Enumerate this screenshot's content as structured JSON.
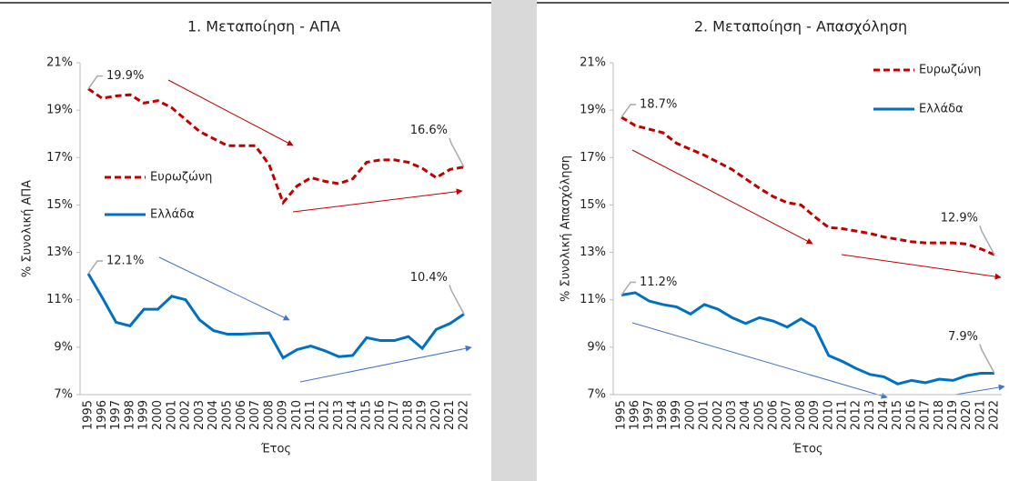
{
  "chart_data": [
    {
      "type": "line",
      "title": "1. Μεταποίηση - ΑΠΑ",
      "x_label": "Έτος",
      "y_label": "% Συνολική ΑΠΑ",
      "categories": [
        "1995",
        "1996",
        "1997",
        "1998",
        "1999",
        "2000",
        "2001",
        "2002",
        "2003",
        "2004",
        "2005",
        "2006",
        "2007",
        "2008",
        "2009",
        "2010",
        "2011",
        "2012",
        "2013",
        "2014",
        "2015",
        "2016",
        "2017",
        "2018",
        "2019",
        "2020",
        "2021",
        "2022"
      ],
      "ylim": [
        7,
        21
      ],
      "yticks": [
        {
          "value": 7,
          "label": "7%"
        },
        {
          "value": 9,
          "label": "9%"
        },
        {
          "value": 11,
          "label": "11%"
        },
        {
          "value": 13,
          "label": "13%"
        },
        {
          "value": 15,
          "label": "15%"
        },
        {
          "value": 17,
          "label": "17%"
        },
        {
          "value": 19,
          "label": "19%"
        },
        {
          "value": 21,
          "label": "21%"
        }
      ],
      "legend": "center left",
      "series": [
        {
          "name": "Ευρωζώνη",
          "color": "#c00000",
          "dashed": true,
          "values": [
            19.9,
            19.5,
            19.6,
            19.65,
            19.3,
            19.4,
            19.1,
            18.6,
            18.1,
            17.8,
            17.5,
            17.5,
            17.5,
            16.7,
            15.1,
            15.8,
            16.15,
            16.0,
            15.9,
            16.1,
            16.8,
            16.9,
            16.9,
            16.8,
            16.55,
            16.15,
            16.5,
            16.6
          ],
          "value_labels": [
            "19.9%",
            null,
            null,
            null,
            null,
            null,
            null,
            null,
            null,
            null,
            null,
            null,
            null,
            null,
            null,
            null,
            null,
            null,
            null,
            null,
            null,
            null,
            null,
            null,
            null,
            null,
            null,
            "16.6%"
          ]
        },
        {
          "name": "Ελλάδα",
          "color": "#0070c0",
          "dashed": false,
          "values": [
            12.1,
            11.1,
            10.05,
            9.9,
            10.6,
            10.6,
            11.15,
            11.0,
            10.15,
            9.7,
            9.55,
            9.55,
            9.58,
            9.6,
            8.55,
            8.9,
            9.05,
            8.85,
            8.6,
            8.65,
            9.4,
            9.28,
            9.28,
            9.45,
            8.95,
            9.75,
            10.0,
            10.4
          ],
          "value_labels": [
            "12.1%",
            null,
            null,
            null,
            null,
            null,
            null,
            null,
            null,
            null,
            null,
            null,
            null,
            null,
            null,
            null,
            null,
            null,
            null,
            null,
            null,
            null,
            null,
            null,
            null,
            null,
            null,
            "10.4%"
          ]
        }
      ]
    },
    {
      "type": "line",
      "title": "2. Μεταποίηση - Απασχόληση",
      "x_label": "Έτος",
      "y_label": "% Συνολική Απασχόληση",
      "categories": [
        "1995",
        "1996",
        "1997",
        "1998",
        "1999",
        "2000",
        "2001",
        "2002",
        "2003",
        "2004",
        "2005",
        "2006",
        "2007",
        "2008",
        "2009",
        "2010",
        "2011",
        "2012",
        "2013",
        "2014",
        "2015",
        "2016",
        "2017",
        "2018",
        "2019",
        "2020",
        "2021",
        "2022"
      ],
      "ylim": [
        7,
        21
      ],
      "yticks": [
        {
          "value": 7,
          "label": "7%"
        },
        {
          "value": 9,
          "label": "9%"
        },
        {
          "value": 11,
          "label": "11%"
        },
        {
          "value": 13,
          "label": "13%"
        },
        {
          "value": 15,
          "label": "15%"
        },
        {
          "value": 17,
          "label": "17%"
        },
        {
          "value": 19,
          "label": "19%"
        },
        {
          "value": 21,
          "label": "21%"
        }
      ],
      "legend": "upper right",
      "series": [
        {
          "name": "Ευρωζώνη",
          "color": "#c00000",
          "dashed": true,
          "values": [
            18.7,
            18.35,
            18.2,
            18.05,
            17.6,
            17.35,
            17.1,
            16.8,
            16.5,
            16.1,
            15.7,
            15.35,
            15.1,
            15.0,
            14.5,
            14.05,
            14.0,
            13.9,
            13.8,
            13.65,
            13.55,
            13.45,
            13.4,
            13.4,
            13.4,
            13.35,
            13.15,
            12.9
          ],
          "value_labels": [
            "18.7%",
            null,
            null,
            null,
            null,
            null,
            null,
            null,
            null,
            null,
            null,
            null,
            null,
            null,
            null,
            null,
            null,
            null,
            null,
            null,
            null,
            null,
            null,
            null,
            null,
            null,
            null,
            "12.9%"
          ]
        },
        {
          "name": "Ελλάδα",
          "color": "#0070c0",
          "dashed": false,
          "values": [
            11.2,
            11.3,
            10.95,
            10.8,
            10.7,
            10.4,
            10.8,
            10.6,
            10.25,
            10.0,
            10.25,
            10.1,
            9.85,
            10.2,
            9.85,
            8.65,
            8.4,
            8.1,
            7.85,
            7.75,
            7.45,
            7.6,
            7.5,
            7.65,
            7.6,
            7.8,
            7.9,
            7.9
          ],
          "value_labels": [
            "11.2%",
            null,
            null,
            null,
            null,
            null,
            null,
            null,
            null,
            null,
            null,
            null,
            null,
            null,
            null,
            null,
            null,
            null,
            null,
            null,
            null,
            null,
            null,
            null,
            null,
            null,
            null,
            "7.9%"
          ]
        }
      ]
    }
  ]
}
